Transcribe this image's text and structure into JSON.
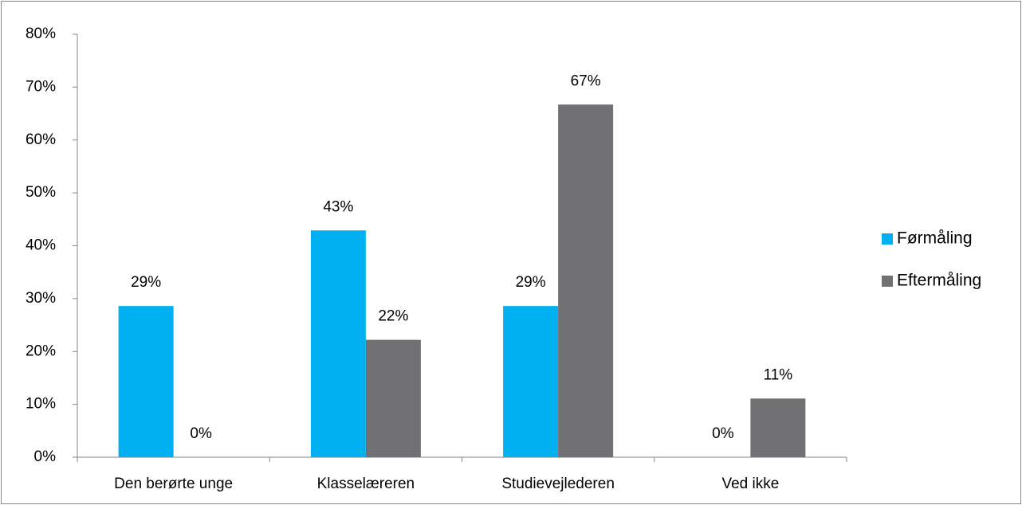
{
  "chart_data": {
    "type": "bar",
    "categories": [
      "Den berørte unge",
      "Klasselæreren",
      "Studievejlederen",
      "Ved ikke"
    ],
    "series": [
      {
        "name": "Førmåling",
        "color": "#00b0f0",
        "values": [
          28.6,
          42.9,
          28.6,
          0
        ],
        "value_labels": [
          "29%",
          "43%",
          "29%",
          "0%"
        ]
      },
      {
        "name": "Eftermåling",
        "color": "#717173",
        "values": [
          0,
          22.2,
          66.7,
          11.1
        ],
        "value_labels": [
          "0%",
          "22%",
          "67%",
          "11%"
        ]
      }
    ],
    "ylim": [
      0,
      80
    ],
    "yticks": [
      {
        "value": 0,
        "label": "0%"
      },
      {
        "value": 10,
        "label": "10%"
      },
      {
        "value": 20,
        "label": "20%"
      },
      {
        "value": 30,
        "label": "30%"
      },
      {
        "value": 40,
        "label": "40%"
      },
      {
        "value": 50,
        "label": "50%"
      },
      {
        "value": 60,
        "label": "60%"
      },
      {
        "value": 70,
        "label": "70%"
      },
      {
        "value": 80,
        "label": "80%"
      }
    ],
    "legend": "right"
  }
}
